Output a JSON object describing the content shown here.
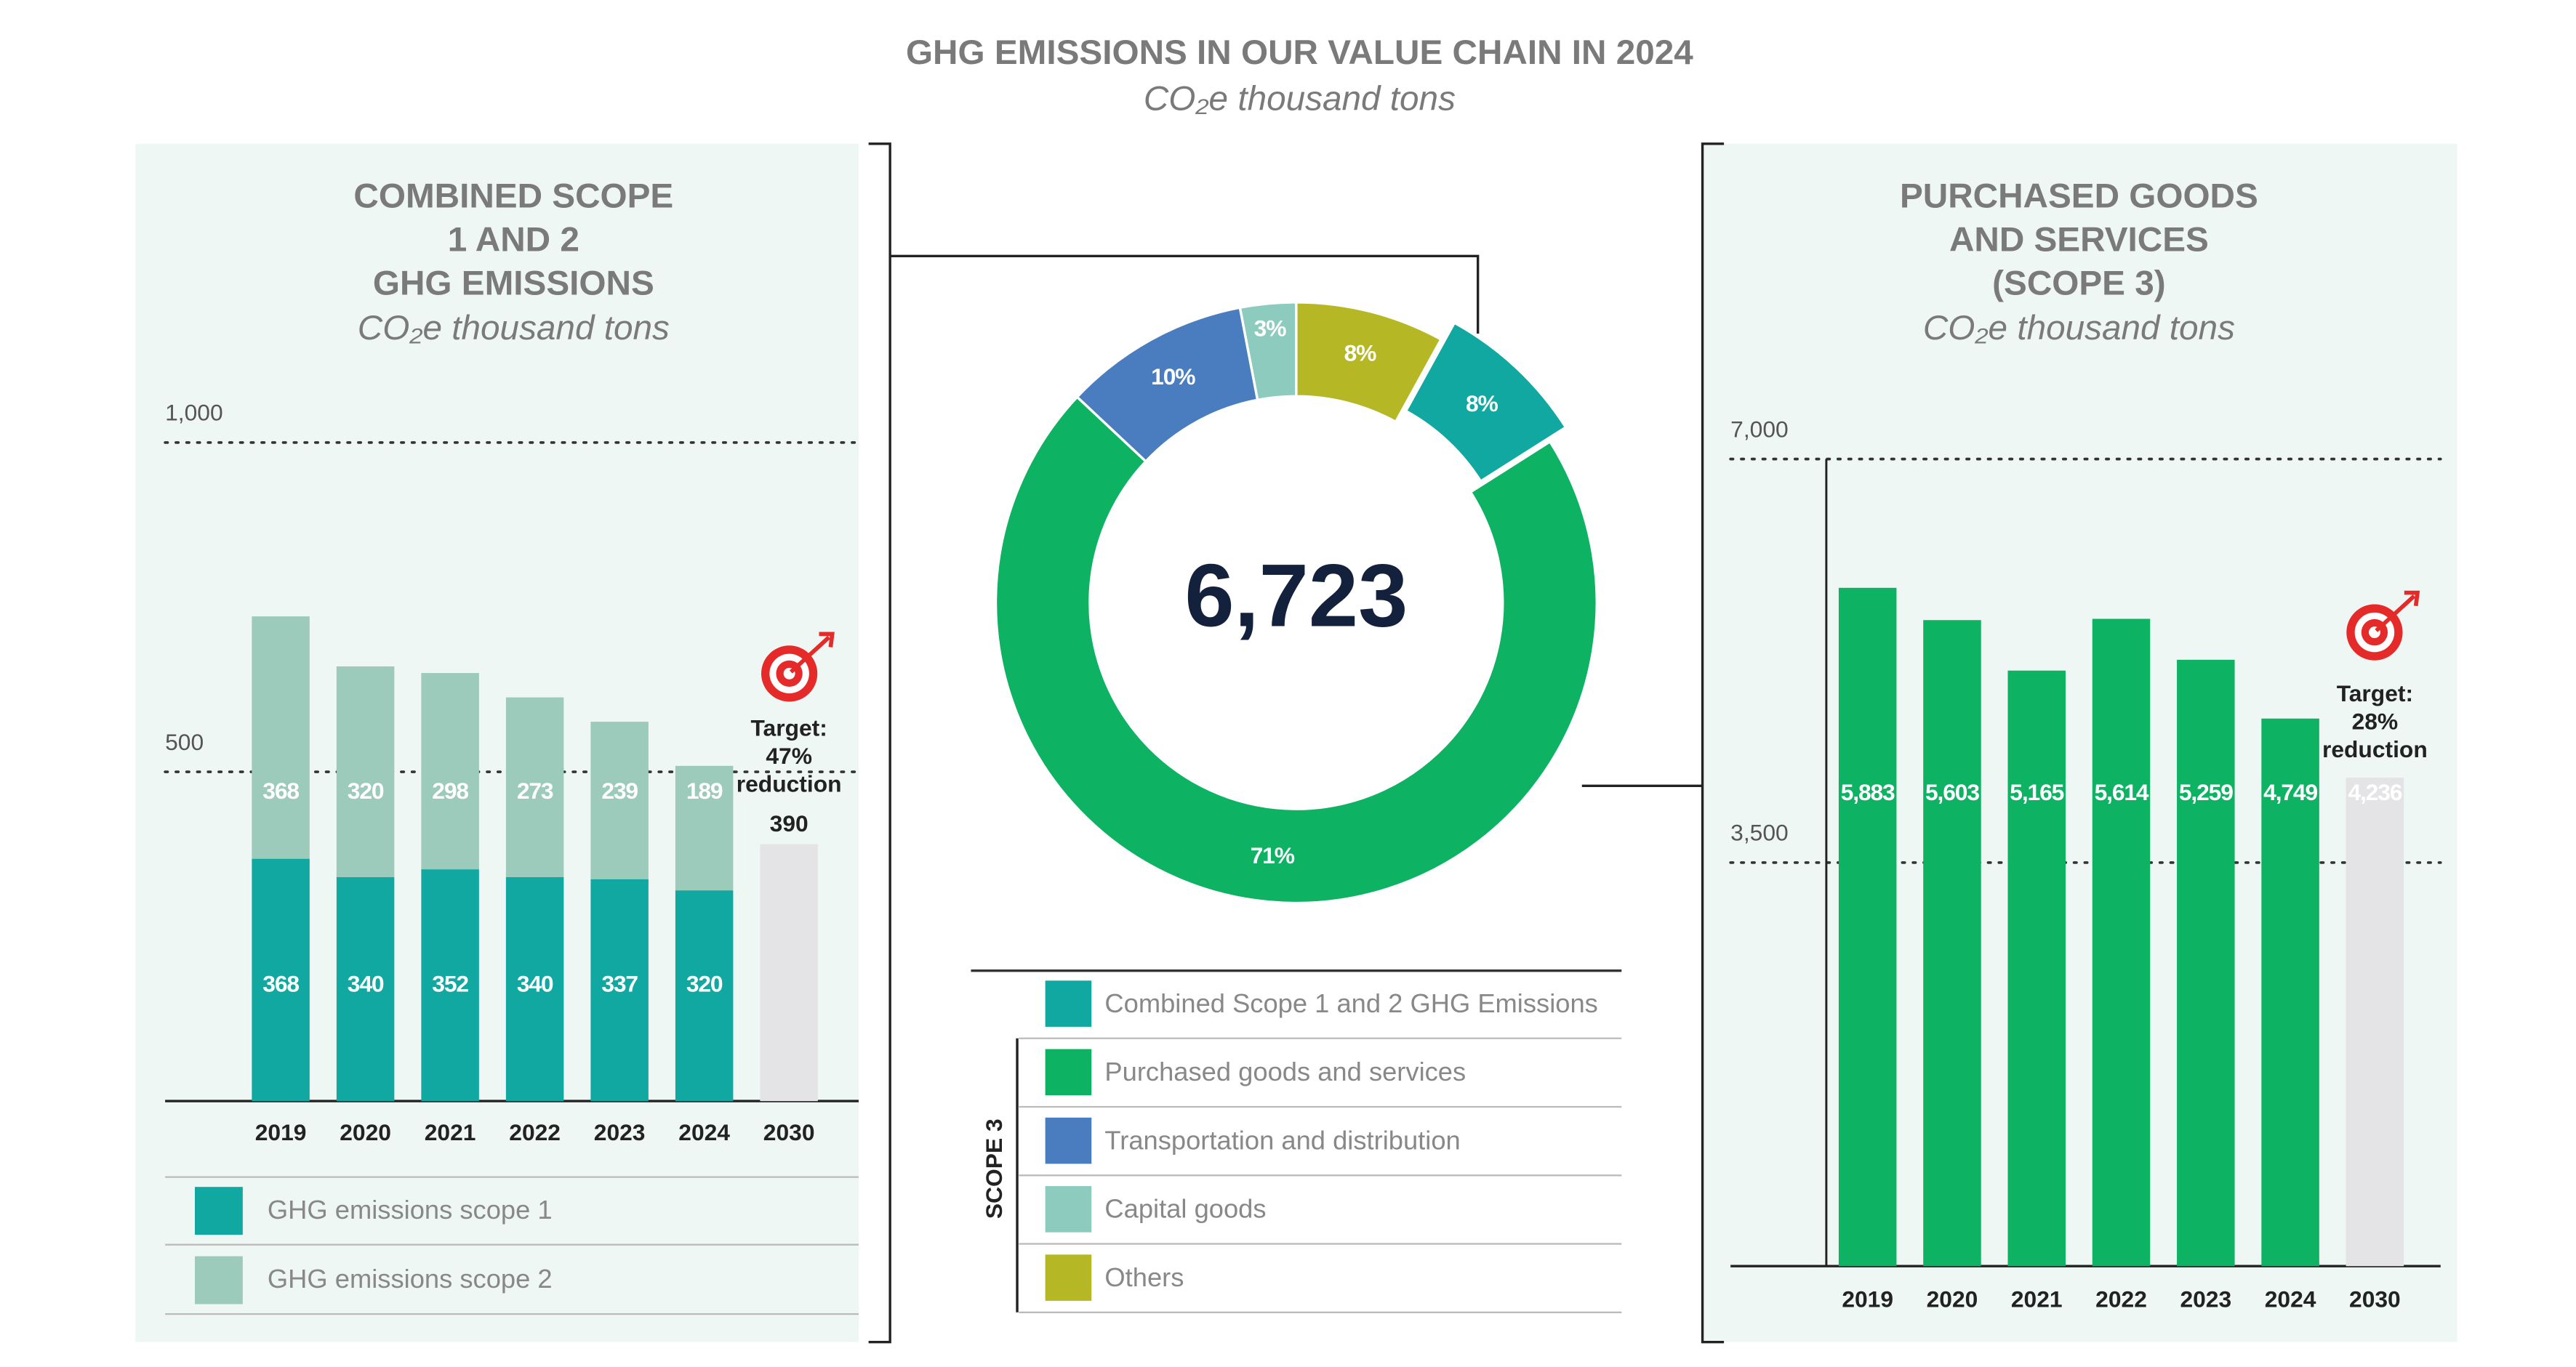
{
  "header": {
    "title": "GHG EMISSIONS IN OUR VALUE CHAIN IN 2024",
    "subtitle": "CO₂e thousand tons"
  },
  "chart_data": [
    {
      "type": "stacked_bar",
      "title": [
        "COMBINED SCOPE",
        "1 AND 2",
        "GHG EMISSIONS"
      ],
      "subtitle": "CO₂e thousand tons",
      "categories": [
        "2019",
        "2020",
        "2021",
        "2022",
        "2023",
        "2024",
        "2030"
      ],
      "series": [
        {
          "name": "GHG emissions scope 1",
          "color": "#12a8a2",
          "values": [
            368,
            340,
            352,
            340,
            337,
            320,
            null
          ]
        },
        {
          "name": "GHG emissions scope 2",
          "color": "#9ccabb",
          "values": [
            368,
            320,
            298,
            273,
            239,
            189,
            null
          ]
        }
      ],
      "target": {
        "value": 390,
        "color": "#e4e4e6",
        "label": [
          "Target:",
          "47%",
          "reduction"
        ]
      },
      "ylim": [
        0,
        1000
      ],
      "yticks": [
        500,
        {
          "value": 1000,
          "label": "1,000"
        }
      ],
      "grid": true
    },
    {
      "type": "donut",
      "total": 6723,
      "total_label": "6,723",
      "categories": [
        "Combined Scope 1 and 2 GHG Emissions",
        "Purchased goods and services",
        "Transportation and distribution",
        "Capital goods",
        "Others"
      ],
      "values": [
        8,
        71,
        10,
        3,
        8
      ],
      "value_labels": [
        "8%",
        "71%",
        "10%",
        "3%",
        "8%"
      ],
      "colors": [
        "#12a8a2",
        "#0db262",
        "#4a7cc0",
        "#8ccbbd",
        "#b5b824"
      ],
      "exploded": [
        true,
        false,
        false,
        false,
        false
      ],
      "group_label": "SCOPE 3"
    },
    {
      "type": "bar",
      "title": [
        "PURCHASED GOODS",
        "AND SERVICES",
        "(SCOPE 3)"
      ],
      "subtitle": "CO₂e thousand tons",
      "categories": [
        "2019",
        "2020",
        "2021",
        "2022",
        "2023",
        "2024",
        "2030"
      ],
      "values": [
        5883,
        5603,
        5165,
        5614,
        5259,
        4749,
        4236
      ],
      "value_labels": [
        "5,883",
        "5,603",
        "5,165",
        "5,614",
        "5,259",
        "4,749",
        "4,236"
      ],
      "colors": [
        "#0db262",
        "#0db262",
        "#0db262",
        "#0db262",
        "#0db262",
        "#0db262",
        "#e4e4e6"
      ],
      "annotation": [
        "Target:",
        "28%",
        "reduction"
      ],
      "ylim": [
        0,
        7000
      ],
      "yticks": [
        {
          "value": 3500,
          "label": "3,500"
        },
        {
          "value": 7000,
          "label": "7,000"
        }
      ],
      "grid": true
    }
  ]
}
